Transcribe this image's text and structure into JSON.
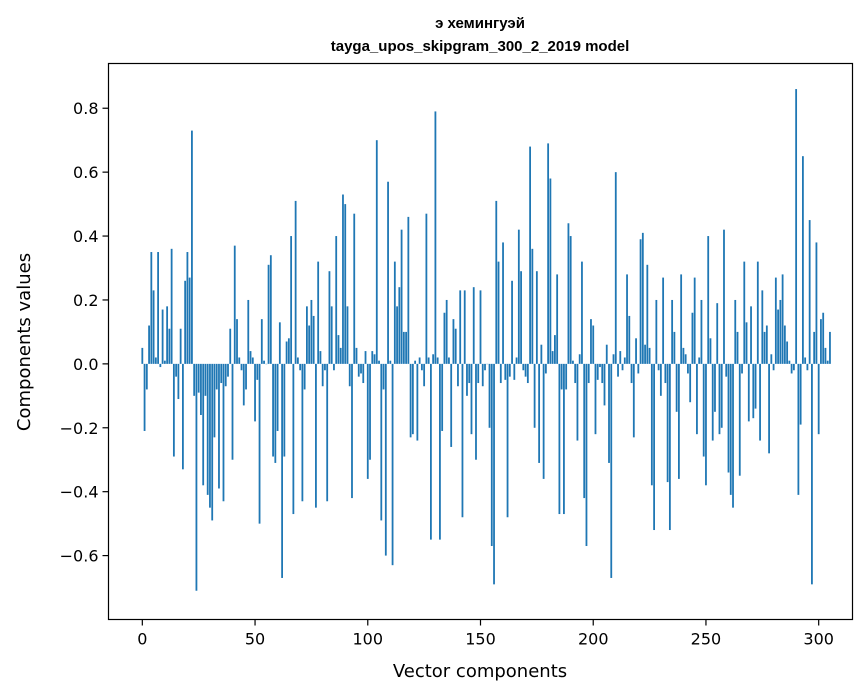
{
  "chart_data": {
    "type": "bar",
    "title_line1": "э хемингуэй",
    "title_line2": "tayga_upos_skipgram_300_2_2019 model",
    "xlabel": "Vector components",
    "ylabel": "Components values",
    "xlim": [
      -15,
      315
    ],
    "ylim": [
      -0.8,
      0.94
    ],
    "xticks": [
      0,
      50,
      100,
      150,
      200,
      250,
      300
    ],
    "yticks": [
      -0.6,
      -0.4,
      -0.2,
      0.0,
      0.2,
      0.4,
      0.6,
      0.8
    ],
    "xtick_labels": [
      "0",
      "50",
      "100",
      "150",
      "200",
      "250",
      "300"
    ],
    "ytick_labels": [
      "−0.6",
      "−0.4",
      "−0.2",
      "0.0",
      "0.2",
      "0.4",
      "0.6",
      "0.8"
    ],
    "bar_color": "#1f77b4",
    "grid": false,
    "values": [
      0.05,
      -0.21,
      -0.08,
      0.12,
      0.35,
      0.23,
      0.02,
      0.35,
      -0.01,
      0.17,
      0.01,
      0.18,
      0.11,
      0.36,
      -0.29,
      -0.04,
      -0.11,
      0.11,
      -0.33,
      0.26,
      0.35,
      0.27,
      0.73,
      -0.1,
      -0.71,
      -0.09,
      -0.16,
      -0.38,
      -0.1,
      -0.41,
      -0.45,
      -0.49,
      -0.23,
      -0.08,
      -0.39,
      -0.06,
      -0.43,
      -0.07,
      -0.04,
      0.11,
      -0.3,
      0.37,
      0.14,
      0.02,
      -0.02,
      -0.13,
      -0.08,
      0.2,
      0.04,
      0.02,
      -0.18,
      -0.05,
      -0.5,
      0.14,
      0.01,
      0.0,
      0.31,
      0.34,
      -0.29,
      -0.31,
      -0.21,
      0.13,
      -0.67,
      -0.29,
      0.07,
      0.08,
      0.4,
      -0.47,
      0.51,
      0.02,
      -0.02,
      -0.43,
      -0.08,
      0.18,
      0.12,
      0.2,
      0.15,
      -0.45,
      0.32,
      0.04,
      -0.07,
      -0.02,
      -0.43,
      0.29,
      0.18,
      -0.02,
      0.4,
      0.09,
      0.05,
      0.53,
      0.5,
      0.18,
      -0.07,
      -0.42,
      0.47,
      0.05,
      -0.04,
      -0.03,
      -0.06,
      0.04,
      -0.36,
      -0.3,
      0.04,
      0.03,
      0.7,
      0.01,
      -0.49,
      -0.08,
      -0.6,
      0.57,
      0.01,
      -0.63,
      0.32,
      0.18,
      0.24,
      0.42,
      0.1,
      0.1,
      0.46,
      -0.23,
      -0.22,
      0.01,
      -0.24,
      0.02,
      -0.02,
      -0.07,
      0.47,
      0.02,
      -0.55,
      0.03,
      0.79,
      0.02,
      -0.55,
      -0.21,
      0.16,
      0.2,
      0.02,
      -0.26,
      0.14,
      0.11,
      -0.07,
      0.23,
      -0.48,
      0.23,
      -0.1,
      -0.06,
      -0.22,
      0.24,
      -0.3,
      -0.06,
      0.23,
      -0.07,
      -0.02,
      0.0,
      -0.2,
      -0.57,
      -0.69,
      0.51,
      0.32,
      -0.06,
      0.38,
      -0.05,
      -0.48,
      -0.04,
      0.26,
      -0.05,
      0.02,
      0.42,
      0.29,
      -0.02,
      -0.04,
      -0.06,
      0.68,
      0.36,
      -0.2,
      0.29,
      -0.31,
      0.06,
      -0.36,
      -0.03,
      0.69,
      0.58,
      0.04,
      0.09,
      0.28,
      -0.47,
      -0.08,
      -0.47,
      -0.08,
      0.44,
      0.4,
      0.01,
      -0.06,
      -0.24,
      0.03,
      0.32,
      -0.42,
      -0.57,
      -0.06,
      0.14,
      0.12,
      -0.22,
      -0.05,
      -0.01,
      -0.06,
      -0.13,
      0.06,
      -0.31,
      -0.67,
      0.03,
      0.6,
      -0.04,
      0.04,
      -0.02,
      0.02,
      0.28,
      0.15,
      -0.06,
      -0.23,
      0.08,
      -0.03,
      0.39,
      0.41,
      0.06,
      0.31,
      0.05,
      -0.38,
      -0.52,
      0.2,
      -0.02,
      -0.1,
      0.27,
      -0.06,
      -0.37,
      -0.52,
      0.2,
      0.1,
      -0.15,
      -0.36,
      0.28,
      0.05,
      0.03,
      -0.03,
      -0.12,
      0.16,
      0.27,
      -0.22,
      0.02,
      0.2,
      -0.29,
      -0.38,
      0.4,
      0.08,
      -0.24,
      -0.15,
      0.19,
      -0.22,
      -0.2,
      0.42,
      -0.04,
      -0.34,
      -0.41,
      -0.45,
      0.2,
      0.1,
      -0.35,
      -0.03,
      0.32,
      0.13,
      -0.18,
      0.18,
      -0.17,
      -0.14,
      0.32,
      -0.24,
      0.23,
      0.1,
      0.12,
      -0.28,
      0.03,
      -0.02,
      0.27,
      0.17,
      0.2,
      0.28,
      0.12,
      0.07,
      0.01,
      -0.03,
      -0.02,
      0.86,
      -0.41,
      -0.19,
      0.65,
      0.02,
      -0.02,
      0.45,
      -0.69,
      0.1,
      0.38,
      -0.22,
      0.14,
      0.16,
      0.05,
      0.01,
      0.1
    ]
  }
}
